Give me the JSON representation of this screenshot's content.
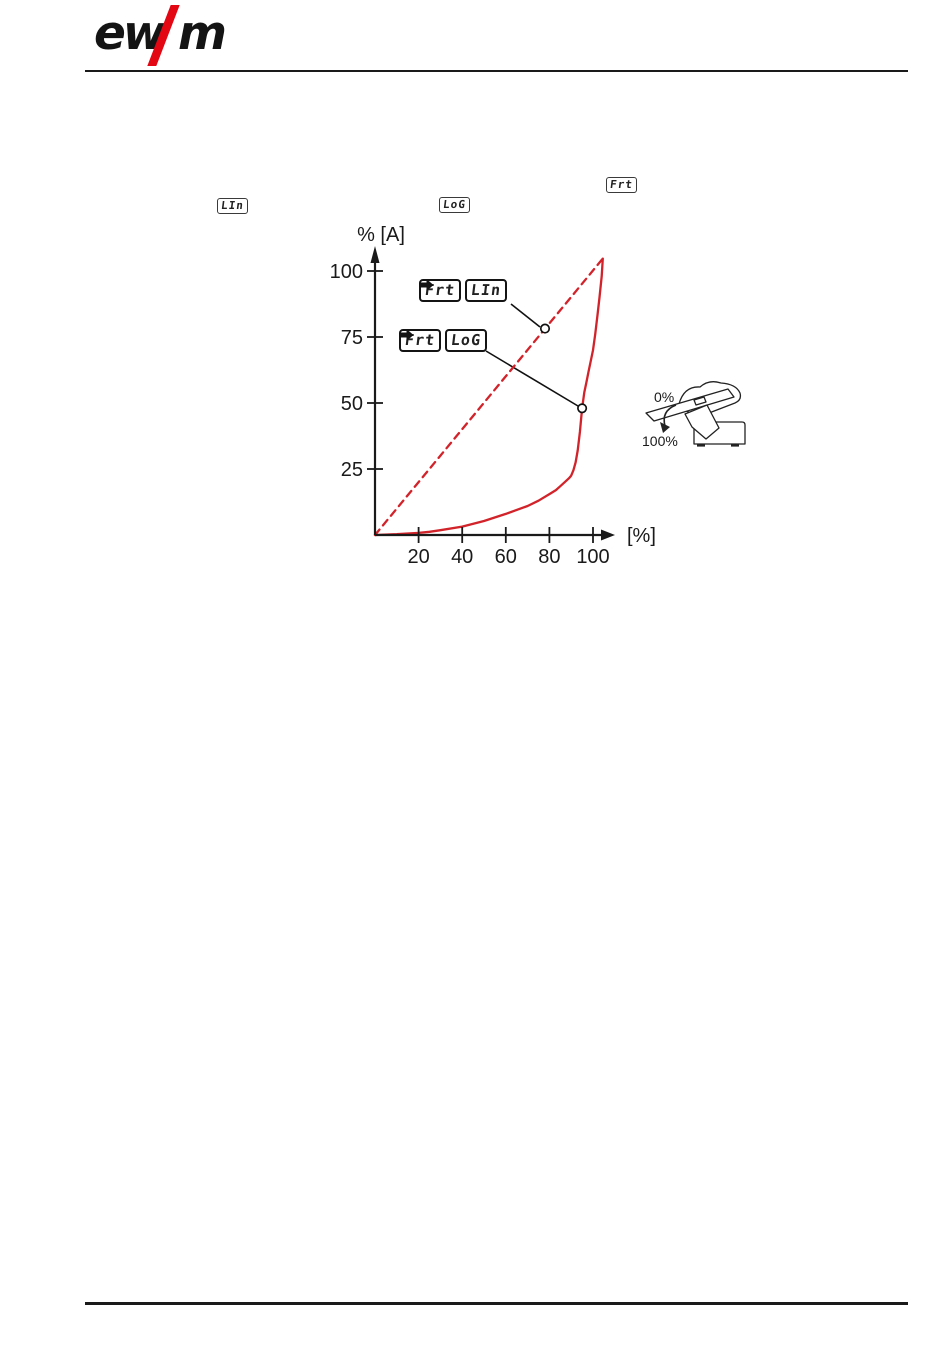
{
  "page": {
    "background": "#ffffff"
  },
  "header": {
    "logo": {
      "part1": "ew",
      "part2": "m",
      "slash_color": "#e30613"
    }
  },
  "display_labels": {
    "frt": "Frt",
    "lin": "LIn",
    "log": "LoG"
  },
  "callouts": [
    {
      "from": "Frt",
      "to": "LIn"
    },
    {
      "from": "Frt",
      "to": "LoG"
    }
  ],
  "chart_data": {
    "type": "line",
    "xlabel": "[%]",
    "ylabel": "% [A]",
    "x_ticks": [
      "20",
      "40",
      "60",
      "80",
      "100"
    ],
    "y_ticks": [
      "25",
      "50",
      "75",
      "100"
    ],
    "xlim": [
      0,
      108
    ],
    "ylim": [
      0,
      108
    ],
    "grid": false,
    "legend": "none",
    "line_color": "#d2232a",
    "series": [
      {
        "name": "Frt → LIn (linear)",
        "style": "dashed",
        "points": [
          [
            0,
            0
          ],
          [
            104.5,
            104.7
          ]
        ]
      },
      {
        "name": "Frt → LoG (logarithmic)",
        "style": "solid",
        "points": [
          [
            0,
            0
          ],
          [
            10,
            0.3
          ],
          [
            20,
            0.8
          ],
          [
            25,
            1.2
          ],
          [
            30,
            1.8
          ],
          [
            40,
            3.2
          ],
          [
            50,
            5.3
          ],
          [
            60,
            8
          ],
          [
            65,
            9.5
          ],
          [
            70,
            11
          ],
          [
            75,
            13
          ],
          [
            80,
            15.5
          ],
          [
            83,
            17
          ],
          [
            85,
            18.5
          ],
          [
            87,
            20
          ],
          [
            89,
            21.5
          ],
          [
            90,
            22.5
          ],
          [
            91,
            24.5
          ],
          [
            92,
            27.5
          ],
          [
            93,
            32
          ],
          [
            94,
            39
          ],
          [
            95,
            48
          ],
          [
            96,
            54
          ],
          [
            97,
            58
          ],
          [
            98,
            62
          ],
          [
            99,
            66
          ],
          [
            100,
            70
          ],
          [
            101,
            76
          ],
          [
            102,
            83
          ],
          [
            103,
            90
          ],
          [
            104,
            98
          ],
          [
            104.5,
            104.7
          ]
        ]
      }
    ],
    "markers": [
      {
        "series": "Frt → LIn",
        "x": 78,
        "y": 78.2
      },
      {
        "series": "Frt → LoG",
        "x": 95,
        "y": 48
      }
    ]
  },
  "pedal_illustration": {
    "top_label": "0%",
    "bottom_label": "100%"
  }
}
